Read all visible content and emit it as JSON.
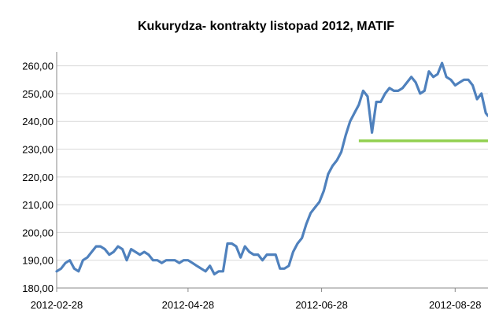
{
  "chart_data": {
    "type": "line",
    "title": "Kukurydza- kontrakty listopad 2012, MATIF",
    "xlabel": "",
    "ylabel": "",
    "ylim": [
      180,
      265
    ],
    "xlim": [
      "2012-02-28",
      "2012-09-12"
    ],
    "y_ticks": [
      "180,00",
      "190,00",
      "200,00",
      "210,00",
      "220,00",
      "230,00",
      "240,00",
      "250,00",
      "260,00"
    ],
    "y_tick_values": [
      180,
      190,
      200,
      210,
      220,
      230,
      240,
      250,
      260
    ],
    "x_ticks": [
      "2012-02-28",
      "2012-04-28",
      "2012-06-28",
      "2012-08-28"
    ],
    "grid": "horizontal",
    "legend": "none",
    "colors": {
      "series": "#4f81bd",
      "reference": "#92d050",
      "grid": "#d9d9d9",
      "axis": "#888888"
    },
    "series": [
      {
        "x": [
          "2012-02-28",
          "2012-03-01",
          "2012-03-03",
          "2012-03-05",
          "2012-03-07",
          "2012-03-09",
          "2012-03-11",
          "2012-03-13",
          "2012-03-15",
          "2012-03-17",
          "2012-03-19",
          "2012-03-21",
          "2012-03-23",
          "2012-03-25",
          "2012-03-27",
          "2012-03-29",
          "2012-03-31",
          "2012-04-02",
          "2012-04-04",
          "2012-04-06",
          "2012-04-08",
          "2012-04-10",
          "2012-04-12",
          "2012-04-14",
          "2012-04-16",
          "2012-04-18",
          "2012-04-20",
          "2012-04-22",
          "2012-04-24",
          "2012-04-26",
          "2012-04-28",
          "2012-04-30",
          "2012-05-02",
          "2012-05-04",
          "2012-05-06",
          "2012-05-08",
          "2012-05-10",
          "2012-05-12",
          "2012-05-14",
          "2012-05-16",
          "2012-05-18",
          "2012-05-20",
          "2012-05-22",
          "2012-05-24",
          "2012-05-26",
          "2012-05-28",
          "2012-05-30",
          "2012-06-01",
          "2012-06-03",
          "2012-06-05",
          "2012-06-07",
          "2012-06-09",
          "2012-06-11",
          "2012-06-13",
          "2012-06-15",
          "2012-06-17",
          "2012-06-19",
          "2012-06-21",
          "2012-06-23",
          "2012-06-25",
          "2012-06-27",
          "2012-06-29",
          "2012-07-01",
          "2012-07-03",
          "2012-07-05",
          "2012-07-07",
          "2012-07-09",
          "2012-07-11",
          "2012-07-13",
          "2012-07-15",
          "2012-07-17",
          "2012-07-19",
          "2012-07-21",
          "2012-07-23",
          "2012-07-25",
          "2012-07-27",
          "2012-07-29",
          "2012-07-31",
          "2012-08-02",
          "2012-08-04",
          "2012-08-06",
          "2012-08-08",
          "2012-08-10",
          "2012-08-12",
          "2012-08-14",
          "2012-08-16",
          "2012-08-18",
          "2012-08-20",
          "2012-08-22",
          "2012-08-24",
          "2012-08-26",
          "2012-08-28",
          "2012-08-30",
          "2012-09-01",
          "2012-09-03",
          "2012-09-05",
          "2012-09-07",
          "2012-09-09",
          "2012-09-11",
          "2012-09-12"
        ],
        "values": [
          186,
          187,
          189,
          190,
          187,
          186,
          190,
          191,
          193,
          195,
          195,
          194,
          192,
          193,
          195,
          194,
          190,
          194,
          193,
          192,
          193,
          192,
          190,
          190,
          189,
          190,
          190,
          190,
          189,
          190,
          190,
          189,
          188,
          187,
          186,
          188,
          185,
          186,
          186,
          196,
          196,
          195,
          191,
          195,
          193,
          192,
          192,
          190,
          192,
          192,
          192,
          187,
          187,
          188,
          193,
          196,
          198,
          203,
          207,
          209,
          211,
          215,
          221,
          224,
          226,
          229,
          235,
          240,
          243,
          246,
          251,
          249,
          236,
          247,
          247,
          250,
          252,
          251,
          251,
          252,
          254,
          256,
          254,
          250,
          251,
          258,
          256,
          257,
          261,
          256,
          255,
          253,
          254,
          255,
          255,
          253,
          248,
          250,
          243,
          242
        ],
        "line_color": "#4f81bd"
      }
    ],
    "reference_line": {
      "y": 233,
      "x_start": "2012-07-15",
      "x_end": "2012-09-12",
      "color": "#92d050"
    }
  }
}
